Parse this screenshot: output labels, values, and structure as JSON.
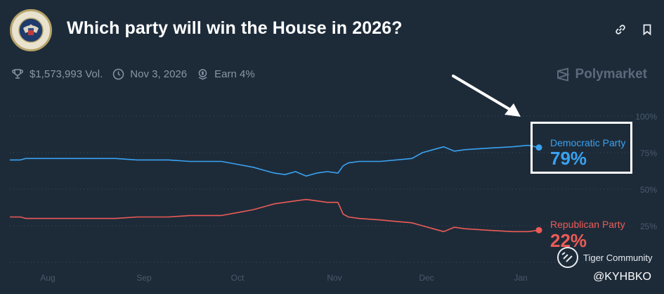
{
  "header": {
    "title": "Which party will win the House in 2026?",
    "seal_text": "U.S. HOUSE OF REPRESENTATIVES",
    "icons": [
      "link-icon",
      "bookmark-icon"
    ]
  },
  "meta": {
    "volume": "$1,573,993 Vol.",
    "end_date": "Nov 3, 2026",
    "earn": "Earn 4%"
  },
  "brand": "Polymarket",
  "outcomes": [
    {
      "name": "Democratic Party",
      "percent": "79%",
      "color": "#3aa2f0"
    },
    {
      "name": "Republican Party",
      "percent": "22%",
      "color": "#ec5b56"
    }
  ],
  "watermark": "Tiger Community",
  "handle": "@KYHBKO",
  "chart_data": {
    "type": "line",
    "x_ticks": [
      "Aug",
      "Sep",
      "Oct",
      "Nov",
      "Dec",
      "Jan"
    ],
    "y_ticks": [
      "100%",
      "75%",
      "50%",
      "25%"
    ],
    "ylim": [
      0,
      100
    ],
    "grid": true,
    "series": [
      {
        "name": "Democratic Party",
        "color": "#3aa2f0",
        "points": [
          [
            0,
            70
          ],
          [
            0.02,
            70
          ],
          [
            0.03,
            71
          ],
          [
            0.1,
            71
          ],
          [
            0.2,
            71
          ],
          [
            0.24,
            70
          ],
          [
            0.3,
            70
          ],
          [
            0.34,
            69
          ],
          [
            0.4,
            69
          ],
          [
            0.43,
            67
          ],
          [
            0.46,
            65
          ],
          [
            0.48,
            63
          ],
          [
            0.5,
            61
          ],
          [
            0.52,
            60
          ],
          [
            0.54,
            62
          ],
          [
            0.56,
            59
          ],
          [
            0.58,
            61
          ],
          [
            0.6,
            62
          ],
          [
            0.62,
            61
          ],
          [
            0.63,
            66
          ],
          [
            0.64,
            68
          ],
          [
            0.66,
            69
          ],
          [
            0.7,
            69
          ],
          [
            0.73,
            70
          ],
          [
            0.76,
            71
          ],
          [
            0.78,
            75
          ],
          [
            0.8,
            77
          ],
          [
            0.82,
            79
          ],
          [
            0.84,
            76
          ],
          [
            0.86,
            77
          ],
          [
            0.9,
            78
          ],
          [
            0.95,
            79
          ],
          [
            0.98,
            80
          ],
          [
            1,
            78.5
          ]
        ]
      },
      {
        "name": "Republican Party",
        "color": "#ec5b56",
        "points": [
          [
            0,
            31
          ],
          [
            0.02,
            31
          ],
          [
            0.03,
            30
          ],
          [
            0.1,
            30
          ],
          [
            0.2,
            30
          ],
          [
            0.24,
            31
          ],
          [
            0.3,
            31
          ],
          [
            0.34,
            32
          ],
          [
            0.4,
            32
          ],
          [
            0.43,
            34
          ],
          [
            0.46,
            36
          ],
          [
            0.48,
            38
          ],
          [
            0.5,
            40
          ],
          [
            0.52,
            41
          ],
          [
            0.54,
            42
          ],
          [
            0.56,
            43
          ],
          [
            0.58,
            42
          ],
          [
            0.6,
            41
          ],
          [
            0.62,
            41
          ],
          [
            0.63,
            33
          ],
          [
            0.64,
            31
          ],
          [
            0.66,
            30
          ],
          [
            0.7,
            29
          ],
          [
            0.73,
            28
          ],
          [
            0.76,
            27
          ],
          [
            0.78,
            25
          ],
          [
            0.8,
            23
          ],
          [
            0.82,
            21
          ],
          [
            0.84,
            24
          ],
          [
            0.86,
            23
          ],
          [
            0.9,
            22
          ],
          [
            0.95,
            21
          ],
          [
            0.98,
            21
          ],
          [
            1,
            22
          ]
        ]
      }
    ]
  }
}
